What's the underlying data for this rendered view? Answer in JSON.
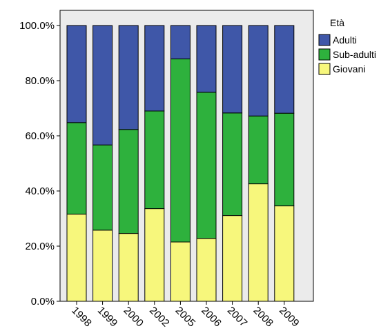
{
  "chart_data": {
    "type": "bar",
    "stacked": true,
    "normalized": true,
    "categories": [
      "1998",
      "1999",
      "2000",
      "2002",
      "2005",
      "2006",
      "2007",
      "2008",
      "2009"
    ],
    "series": [
      {
        "name": "Giovani",
        "color": "#f7f77c",
        "values": [
          31.6,
          25.8,
          24.6,
          33.6,
          21.5,
          22.8,
          31.1,
          42.6,
          34.6
        ]
      },
      {
        "name": "Sub-adulti",
        "color": "#2eb13d",
        "values": [
          33.2,
          30.9,
          37.7,
          35.4,
          66.4,
          53.0,
          37.2,
          24.6,
          33.6
        ]
      },
      {
        "name": "Adulti",
        "color": "#3f57a8",
        "values": [
          35.2,
          43.3,
          37.7,
          31.0,
          12.1,
          24.2,
          31.7,
          32.8,
          31.8
        ]
      }
    ],
    "ylim": [
      0,
      100
    ],
    "yticks": [
      "0.0%",
      "20.0%",
      "40.0%",
      "60.0%",
      "80.0%",
      "100.0%"
    ],
    "ytick_values": [
      0,
      20,
      40,
      60,
      80,
      100
    ],
    "legend": {
      "title": "Età",
      "placement": "top-right",
      "entries": [
        "Adulti",
        "Sub-adulti",
        "Giovani"
      ]
    },
    "plot_background": "#ebebeb",
    "grid": false,
    "title": "",
    "xlabel": "",
    "ylabel": ""
  }
}
